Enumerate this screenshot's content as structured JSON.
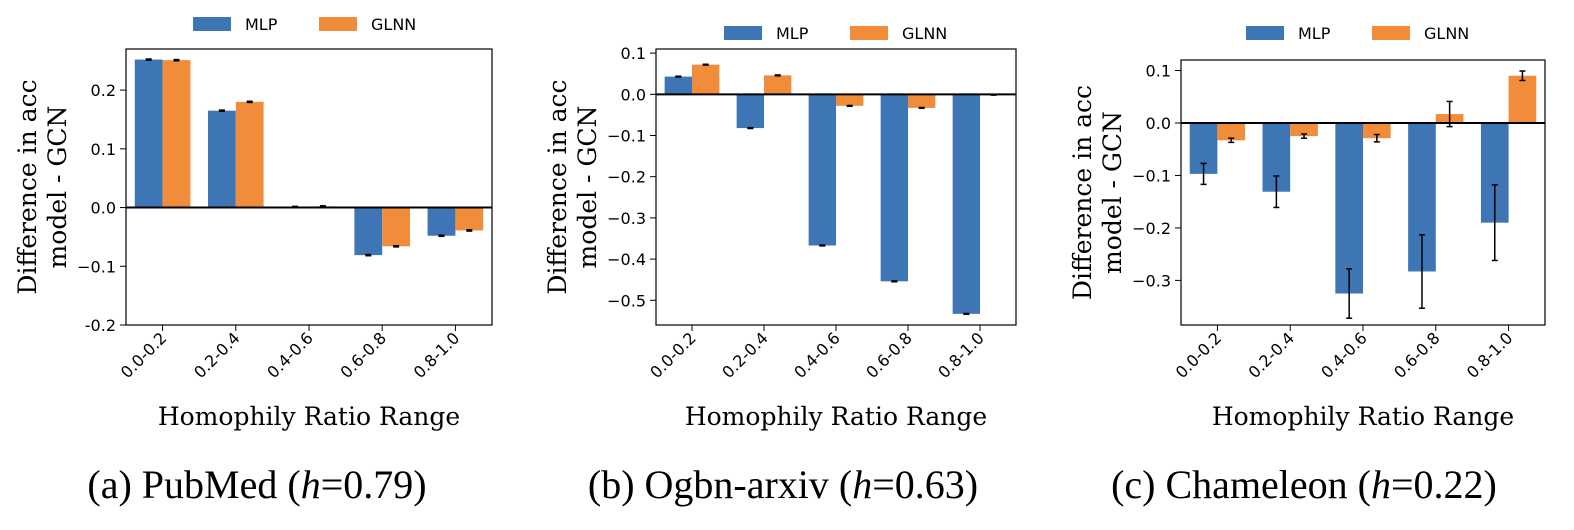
{
  "chart_data": [
    {
      "type": "bar",
      "caption": {
        "prefix": "(a) PubMed (",
        "var": "h",
        "suffix": "=0.79)"
      },
      "xlabel": "Homophily Ratio Range",
      "ylabel": [
        "Difference in acc",
        "model - GCN"
      ],
      "categories": [
        "0.0-0.2",
        "0.2-0.4",
        "0.4-0.6",
        "0.6-0.8",
        "0.8-1.0"
      ],
      "ylim": [
        -0.2,
        0.27
      ],
      "yticks": [
        -0.2,
        -0.1,
        0.0,
        0.1,
        0.2
      ],
      "yticklabels": [
        "-0.2",
        "−0.1",
        "0.0",
        "0.1",
        "0.2"
      ],
      "series": [
        {
          "name": "MLP",
          "color": "#3d75b5",
          "values": [
            0.252,
            0.165,
            0.001,
            -0.081,
            -0.048
          ],
          "errors": [
            0.001,
            0.001,
            0.001,
            0.001,
            0.001
          ]
        },
        {
          "name": "GLNN",
          "color": "#f08c3a",
          "values": [
            0.251,
            0.18,
            0.002,
            -0.066,
            -0.039
          ],
          "errors": [
            0.001,
            0.001,
            0.001,
            0.001,
            0.001
          ]
        }
      ]
    },
    {
      "type": "bar",
      "caption": {
        "prefix": "(b) Ogbn-arxiv (",
        "var": "h",
        "suffix": "=0.63)"
      },
      "xlabel": "Homophily Ratio Range",
      "ylabel": [
        "Difference in acc",
        "model - GCN"
      ],
      "categories": [
        "0.0-0.2",
        "0.2-0.4",
        "0.4-0.6",
        "0.6-0.8",
        "0.8-1.0"
      ],
      "ylim": [
        -0.56,
        0.11
      ],
      "yticks": [
        -0.5,
        -0.4,
        -0.3,
        -0.2,
        -0.1,
        0.0,
        0.1
      ],
      "yticklabels": [
        "−0.5",
        "−0.4",
        "−0.3",
        "−0.2",
        "−0.1",
        "0.0",
        "0.1"
      ],
      "series": [
        {
          "name": "MLP",
          "color": "#3d75b5",
          "values": [
            0.043,
            -0.082,
            -0.367,
            -0.454,
            -0.533
          ],
          "errors": [
            0.001,
            0.001,
            0.001,
            0.001,
            0.001
          ]
        },
        {
          "name": "GLNN",
          "color": "#f08c3a",
          "values": [
            0.072,
            0.046,
            -0.028,
            -0.033,
            -0.001
          ],
          "errors": [
            0.001,
            0.001,
            0.001,
            0.001,
            0.001
          ]
        }
      ]
    },
    {
      "type": "bar",
      "caption": {
        "prefix": "(c) Chameleon (",
        "var": "h",
        "suffix": "=0.22)"
      },
      "xlabel": "Homophily Ratio Range",
      "ylabel": [
        "Difference in acc",
        "model - GCN"
      ],
      "categories": [
        "0.0-0.2",
        "0.2-0.4",
        "0.4-0.6",
        "0.6-0.8",
        "0.8-1.0"
      ],
      "ylim": [
        -0.385,
        0.12
      ],
      "yticks": [
        -0.3,
        -0.2,
        -0.1,
        0.0,
        0.1
      ],
      "yticklabels": [
        "−0.3",
        "−0.2",
        "−0.1",
        "0.0",
        "0.1"
      ],
      "series": [
        {
          "name": "MLP",
          "color": "#3d75b5",
          "values": [
            -0.097,
            -0.131,
            -0.325,
            -0.283,
            -0.19
          ],
          "errors": [
            0.02,
            0.03,
            0.047,
            0.07,
            0.072
          ]
        },
        {
          "name": "GLNN",
          "color": "#f08c3a",
          "values": [
            -0.033,
            -0.025,
            -0.029,
            0.017,
            0.09
          ],
          "errors": [
            0.004,
            0.004,
            0.007,
            0.024,
            0.009
          ]
        }
      ]
    }
  ]
}
